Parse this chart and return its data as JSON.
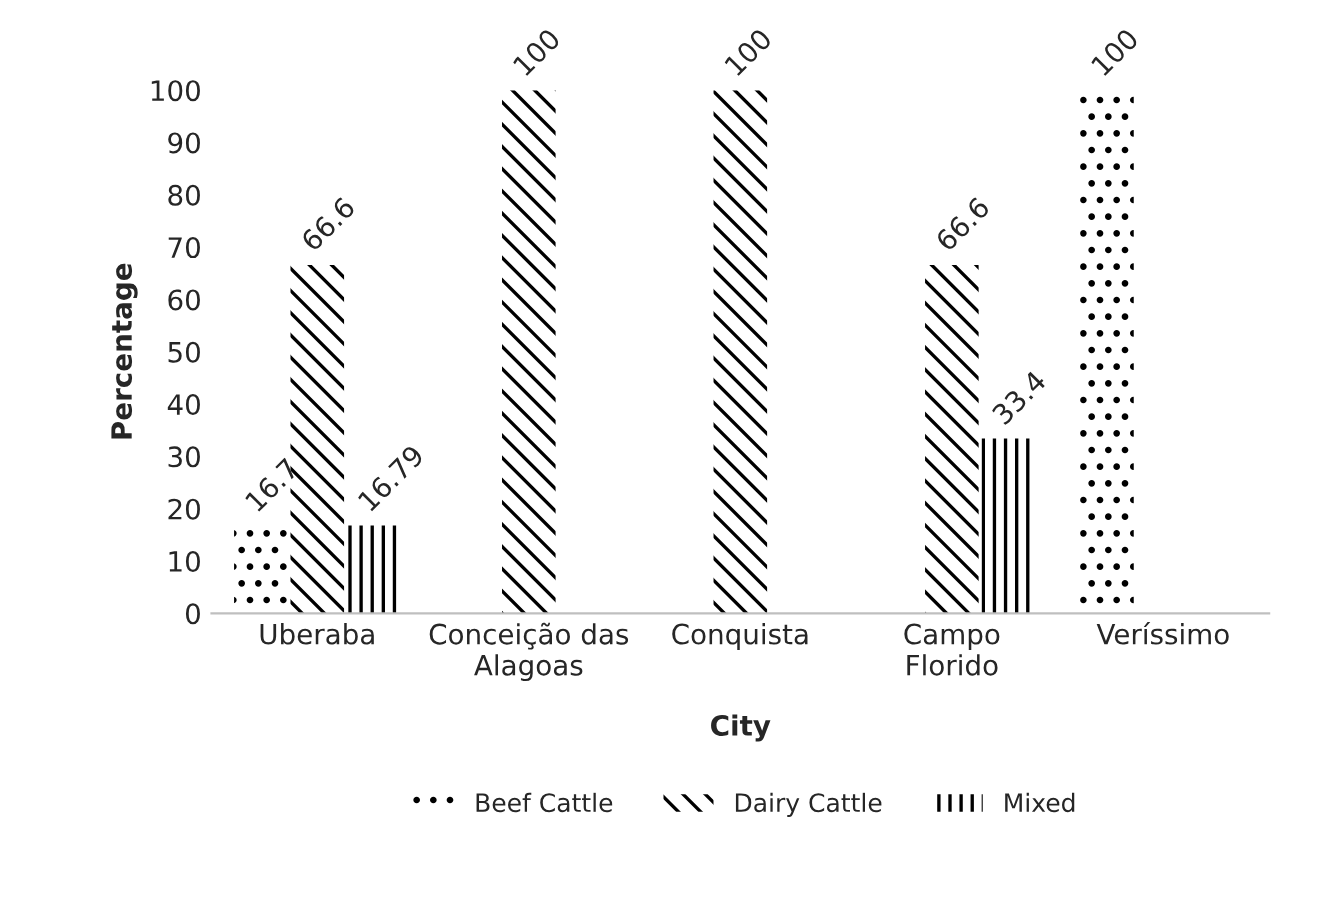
{
  "chart_data": {
    "type": "bar",
    "xlabel": "City",
    "ylabel": "Percentage",
    "categories": [
      "Uberaba",
      "Conceição das\nAlagoas",
      "Conquista",
      "Campo\nFlorido",
      "Veríssimo"
    ],
    "series": [
      {
        "name": "Beef Cattle",
        "color": "#ffffff",
        "values": [
          16.7,
          null,
          null,
          null,
          100
        ]
      },
      {
        "name": "Dairy Cattle",
        "color": "#ffffff",
        "values": [
          66.6,
          100,
          100,
          66.6,
          null
        ]
      },
      {
        "name": "Mixed",
        "color": "#ffffff",
        "values": [
          16.79,
          null,
          null,
          33.4,
          null
        ]
      }
    ],
    "data_labels": true,
    "ylim": [
      0,
      100
    ],
    "yticks": [
      0,
      10,
      20,
      30,
      40,
      50,
      60,
      70,
      80,
      90,
      100
    ],
    "grid": false,
    "legend": "bottom"
  }
}
